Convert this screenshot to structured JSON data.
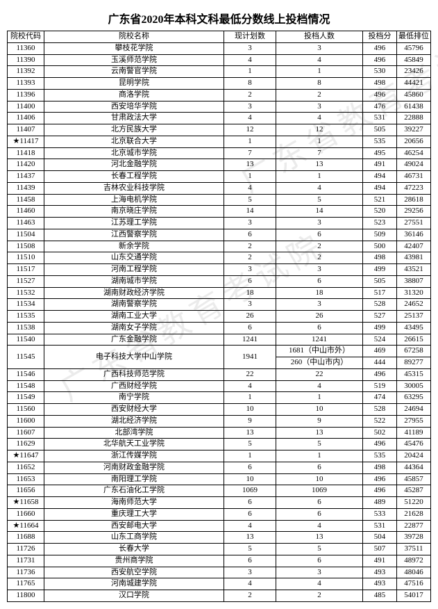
{
  "title": "广东省2020年本科文科最低分数线上投档情况",
  "watermark_text": "广东省教育考试院",
  "headers": {
    "code": "院校代码",
    "name": "院校名称",
    "plan": "现计划数",
    "num": "投档人数",
    "score": "投档分",
    "rank": "最低排位"
  },
  "rows": [
    {
      "code": "11360",
      "name": "攀枝花学院",
      "plan": "3",
      "num": "3",
      "score": "496",
      "rank": "45796"
    },
    {
      "code": "11390",
      "name": "玉溪师范学院",
      "plan": "4",
      "num": "4",
      "score": "496",
      "rank": "45849"
    },
    {
      "code": "11392",
      "name": "云南警官学院",
      "plan": "1",
      "num": "1",
      "score": "530",
      "rank": "23426"
    },
    {
      "code": "11393",
      "name": "昆明学院",
      "plan": "8",
      "num": "8",
      "score": "498",
      "rank": "44421"
    },
    {
      "code": "11396",
      "name": "商洛学院",
      "plan": "2",
      "num": "2",
      "score": "496",
      "rank": "45860"
    },
    {
      "code": "11400",
      "name": "西安培华学院",
      "plan": "3",
      "num": "3",
      "score": "476",
      "rank": "61438"
    },
    {
      "code": "11406",
      "name": "甘肃政法大学",
      "plan": "4",
      "num": "4",
      "score": "531",
      "rank": "22888"
    },
    {
      "code": "11407",
      "name": "北方民族大学",
      "plan": "12",
      "num": "12",
      "score": "505",
      "rank": "39227"
    },
    {
      "code": "★11417",
      "name": "北京联合大学",
      "plan": "1",
      "num": "1",
      "score": "535",
      "rank": "20656"
    },
    {
      "code": "11418",
      "name": "北京城市学院",
      "plan": "7",
      "num": "7",
      "score": "495",
      "rank": "46254"
    },
    {
      "code": "11420",
      "name": "河北金融学院",
      "plan": "13",
      "num": "13",
      "score": "491",
      "rank": "49024"
    },
    {
      "code": "11437",
      "name": "长春工程学院",
      "plan": "1",
      "num": "1",
      "score": "494",
      "rank": "46731"
    },
    {
      "code": "11439",
      "name": "吉林农业科技学院",
      "plan": "4",
      "num": "4",
      "score": "494",
      "rank": "47223"
    },
    {
      "code": "11458",
      "name": "上海电机学院",
      "plan": "5",
      "num": "5",
      "score": "521",
      "rank": "28618"
    },
    {
      "code": "11460",
      "name": "南京晓庄学院",
      "plan": "14",
      "num": "14",
      "score": "520",
      "rank": "29256"
    },
    {
      "code": "11463",
      "name": "江苏理工学院",
      "plan": "3",
      "num": "3",
      "score": "523",
      "rank": "27551"
    },
    {
      "code": "11504",
      "name": "江西警察学院",
      "plan": "6",
      "num": "6",
      "score": "509",
      "rank": "36146"
    },
    {
      "code": "11508",
      "name": "新余学院",
      "plan": "2",
      "num": "2",
      "score": "500",
      "rank": "42407"
    },
    {
      "code": "11510",
      "name": "山东交通学院",
      "plan": "2",
      "num": "2",
      "score": "498",
      "rank": "43981"
    },
    {
      "code": "11517",
      "name": "河南工程学院",
      "plan": "3",
      "num": "3",
      "score": "499",
      "rank": "43521"
    },
    {
      "code": "11527",
      "name": "湖南城市学院",
      "plan": "6",
      "num": "6",
      "score": "505",
      "rank": "38807"
    },
    {
      "code": "11532",
      "name": "湖南财政经济学院",
      "plan": "18",
      "num": "18",
      "score": "517",
      "rank": "31320"
    },
    {
      "code": "11534",
      "name": "湖南警察学院",
      "plan": "3",
      "num": "3",
      "score": "528",
      "rank": "24652"
    },
    {
      "code": "11535",
      "name": "湖南工业大学",
      "plan": "26",
      "num": "26",
      "score": "527",
      "rank": "25137"
    },
    {
      "code": "11538",
      "name": "湖南女子学院",
      "plan": "6",
      "num": "6",
      "score": "499",
      "rank": "43495"
    },
    {
      "code": "11540",
      "name": "广东金融学院",
      "plan": "1241",
      "num": "1241",
      "score": "524",
      "rank": "26615"
    },
    {
      "code": "11546",
      "name": "广西科技师范学院",
      "plan": "22",
      "num": "22",
      "score": "496",
      "rank": "45315"
    },
    {
      "code": "11548",
      "name": "广西财经学院",
      "plan": "4",
      "num": "4",
      "score": "519",
      "rank": "30005"
    },
    {
      "code": "11549",
      "name": "南宁学院",
      "plan": "1",
      "num": "1",
      "score": "474",
      "rank": "63295"
    },
    {
      "code": "11560",
      "name": "西安财经大学",
      "plan": "10",
      "num": "10",
      "score": "528",
      "rank": "24694"
    },
    {
      "code": "11600",
      "name": "湖北经济学院",
      "plan": "9",
      "num": "9",
      "score": "522",
      "rank": "27955"
    },
    {
      "code": "11607",
      "name": "北部湾学院",
      "plan": "13",
      "num": "13",
      "score": "502",
      "rank": "41189"
    },
    {
      "code": "11629",
      "name": "北华航天工业学院",
      "plan": "5",
      "num": "5",
      "score": "496",
      "rank": "45476"
    },
    {
      "code": "★11647",
      "name": "浙江传媒学院",
      "plan": "1",
      "num": "1",
      "score": "535",
      "rank": "20424"
    },
    {
      "code": "11652",
      "name": "河南财政金融学院",
      "plan": "6",
      "num": "6",
      "score": "498",
      "rank": "44364"
    },
    {
      "code": "11653",
      "name": "南阳理工学院",
      "plan": "10",
      "num": "10",
      "score": "496",
      "rank": "45857"
    },
    {
      "code": "11656",
      "name": "广东石油化工学院",
      "plan": "1069",
      "num": "1069",
      "score": "496",
      "rank": "45287"
    },
    {
      "code": "★11658",
      "name": "海南师范大学",
      "plan": "6",
      "num": "6",
      "score": "489",
      "rank": "51220"
    },
    {
      "code": "11660",
      "name": "重庆理工大学",
      "plan": "6",
      "num": "6",
      "score": "533",
      "rank": "21628"
    },
    {
      "code": "★11664",
      "name": "西安邮电大学",
      "plan": "4",
      "num": "4",
      "score": "531",
      "rank": "22877"
    },
    {
      "code": "11688",
      "name": "山东工商学院",
      "plan": "13",
      "num": "13",
      "score": "504",
      "rank": "39728"
    },
    {
      "code": "11726",
      "name": "长春大学",
      "plan": "5",
      "num": "5",
      "score": "507",
      "rank": "37511"
    },
    {
      "code": "11731",
      "name": "贵州商学院",
      "plan": "6",
      "num": "6",
      "score": "491",
      "rank": "48972"
    },
    {
      "code": "11736",
      "name": "西安航空学院",
      "plan": "3",
      "num": "3",
      "score": "493",
      "rank": "48046"
    },
    {
      "code": "11765",
      "name": "河南城建学院",
      "plan": "4",
      "num": "4",
      "score": "493",
      "rank": "47516"
    },
    {
      "code": "11800",
      "name": "汉口学院",
      "plan": "2",
      "num": "2",
      "score": "485",
      "rank": "54017"
    }
  ],
  "special_row": {
    "code": "11545",
    "name": "电子科技大学中山学院",
    "plan": "1941",
    "sub": [
      {
        "num": "1681（中山市外）",
        "score": "469",
        "rank": "67258"
      },
      {
        "num": "260（中山市内）",
        "score": "444",
        "rank": "89277"
      }
    ]
  }
}
